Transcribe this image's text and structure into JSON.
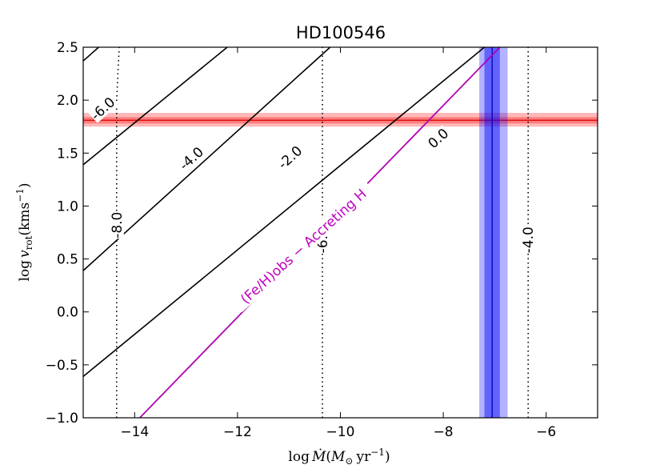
{
  "chart_data": {
    "type": "line",
    "title": "HD100546",
    "xlabel": "log Ṁ(M⊙ yr⁻¹)",
    "ylabel": "log v_rot (kms⁻¹)",
    "xlim": [
      -15,
      -5
    ],
    "ylim": [
      -1.0,
      2.5
    ],
    "xticks": [
      -14,
      -12,
      -10,
      -8,
      -6
    ],
    "xtick_labels": [
      "−14",
      "−12",
      "−10",
      "−8",
      "−6"
    ],
    "yticks": [
      -1.0,
      -0.5,
      0.0,
      0.5,
      1.0,
      1.5,
      2.0,
      2.5
    ],
    "ytick_labels": [
      "−1.0",
      "−0.5",
      "0.0",
      "0.5",
      "1.0",
      "1.5",
      "2.0",
      "2.5"
    ],
    "grid": false,
    "solid_contours": [
      {
        "label": "-6.0",
        "x": [
          -15.0,
          -14.7
        ],
        "y": [
          2.37,
          2.5
        ]
      },
      {
        "label": "-4.0",
        "x": [
          -15.0,
          -12.2
        ],
        "y": [
          1.39,
          2.5
        ]
      },
      {
        "label": "-2.0",
        "x": [
          -15.0,
          -10.2
        ],
        "y": [
          0.39,
          2.5
        ]
      },
      {
        "label": "0.0",
        "x": [
          -15.0,
          -7.2
        ],
        "y": [
          -0.61,
          2.5
        ]
      },
      {
        "label": "",
        "x": [
          -13.9,
          -6.9
        ],
        "y": [
          -1.0,
          2.5
        ]
      }
    ],
    "dotted_contours": [
      {
        "label": "-8.0",
        "x": [
          -14.35,
          -14.35,
          -14.3
        ],
        "y": [
          -1.0,
          2.0,
          2.5
        ]
      },
      {
        "label": "-6.0",
        "x": [
          -10.35,
          -10.35
        ],
        "y": [
          -1.0,
          2.5
        ]
      },
      {
        "label": "-4.0",
        "x": [
          -6.35,
          -6.35
        ],
        "y": [
          -1.0,
          2.5
        ]
      }
    ],
    "accreting_line": {
      "name": "(Fe/H)obs − Accreting H",
      "color": "#bf00bf",
      "x": [
        -13.9,
        -6.9
      ],
      "y": [
        -1.0,
        2.5
      ]
    },
    "vrot_band": {
      "value": 1.81,
      "inner": [
        1.78,
        1.84
      ],
      "outer": [
        1.75,
        1.88
      ],
      "color": "#ff0000"
    },
    "mdot_band": {
      "value": -7.05,
      "inner": [
        -7.2,
        -6.9
      ],
      "outer": [
        -7.3,
        -6.75
      ],
      "color": "#0000ff"
    }
  }
}
